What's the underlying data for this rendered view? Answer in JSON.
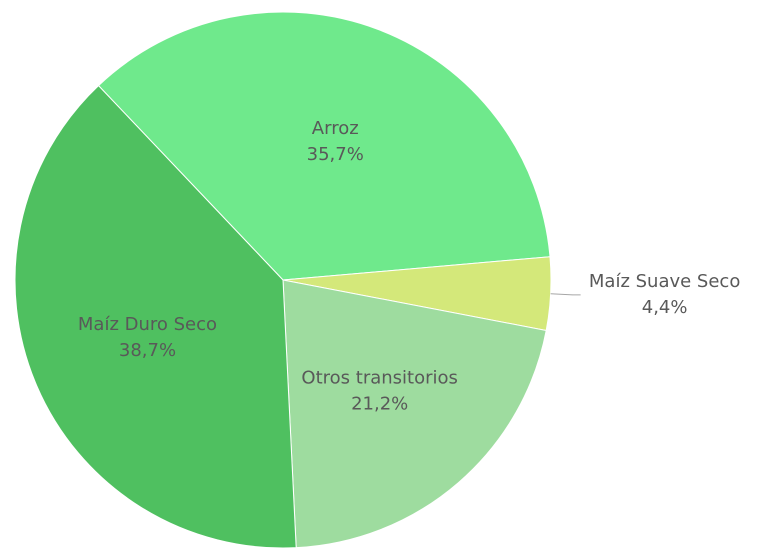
{
  "chart_data": {
    "type": "pie",
    "categories": [
      "Arroz",
      "Maíz Suave Seco",
      "Otros transitorios",
      "Maíz Duro Seco"
    ],
    "values": [
      35.7,
      4.4,
      21.2,
      38.7
    ],
    "value_labels": [
      "35,7%",
      "4,4%",
      "21,2%",
      "38,7%"
    ],
    "colors": [
      "#6fe98c",
      "#d4e87a",
      "#9edc9f",
      "#4fc060"
    ]
  }
}
